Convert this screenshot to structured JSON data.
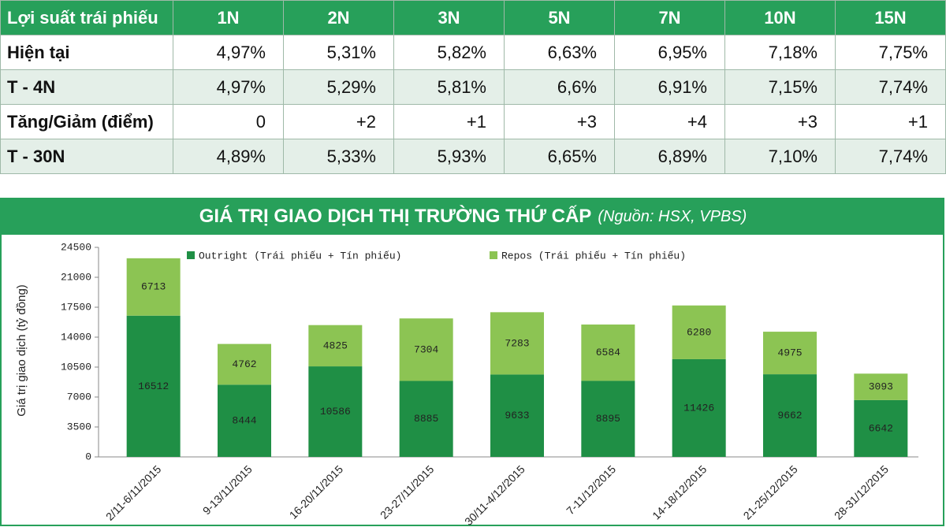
{
  "table": {
    "header": [
      "Lợi suất trái phiếu",
      "1N",
      "2N",
      "3N",
      "5N",
      "7N",
      "10N",
      "15N"
    ],
    "rows": [
      [
        "Hiện tại",
        "4,97%",
        "5,31%",
        "5,82%",
        "6,63%",
        "6,95%",
        "7,18%",
        "7,75%"
      ],
      [
        "T - 4N",
        "4,97%",
        "5,29%",
        "5,81%",
        "6,6%",
        "6,91%",
        "7,15%",
        "7,74%"
      ],
      [
        "Tăng/Giảm (điểm)",
        "0",
        "+2",
        "+1",
        "+3",
        "+4",
        "+3",
        "+1"
      ],
      [
        "T - 30N",
        "4,89%",
        "5,33%",
        "5,93%",
        "6,65%",
        "6,89%",
        "7,10%",
        "7,74%"
      ]
    ]
  },
  "chart_data": {
    "type": "bar",
    "stacked": true,
    "title": "GIÁ TRỊ GIAO DỊCH THỊ TRƯỜNG THỨ CẤP",
    "subtitle": "(Nguồn: HSX, VPBS)",
    "y_label": "Giá trị giao dịch (tỷ đồng)",
    "categories": [
      "2/11-6/11/2015",
      "9-13/11/2015",
      "16-20/11/2015",
      "23-27/11/2015",
      "30/11-4/12/2015",
      "7-11/12/2015",
      "14-18/12/2015",
      "21-25/12/2015",
      "28-31/12/2015"
    ],
    "series": [
      {
        "name": "Outright (Trái phiếu + Tín phiếu)",
        "color": "#1f8f45",
        "values": [
          16512,
          8444,
          10586,
          8885,
          9633,
          8895,
          11426,
          9662,
          6642
        ]
      },
      {
        "name": "Repos (Trái phiếu + Tín phiếu)",
        "color": "#8cc453",
        "values": [
          6713,
          4762,
          4825,
          7304,
          7283,
          6584,
          6280,
          4975,
          3093
        ]
      }
    ],
    "ylim": [
      0,
      24500
    ],
    "yticks": [
      0,
      3500,
      7000,
      10500,
      14000,
      17500,
      21000,
      24500
    ],
    "legend": "top"
  }
}
